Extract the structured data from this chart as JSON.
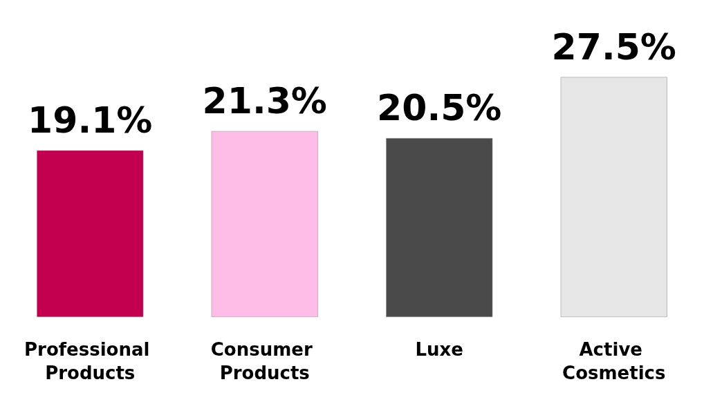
{
  "chart_data": {
    "type": "bar",
    "categories": [
      "Professional Products",
      "Consumer Products",
      "Luxe",
      "Active Cosmetics"
    ],
    "values": [
      19.1,
      21.3,
      20.5,
      27.5
    ],
    "colors": [
      "#c2004f",
      "#fdbde6",
      "#4a4a4a",
      "#e6e6e6"
    ],
    "value_labels": [
      "19.1%",
      "21.3%",
      "20.5%",
      "27.5%"
    ]
  }
}
